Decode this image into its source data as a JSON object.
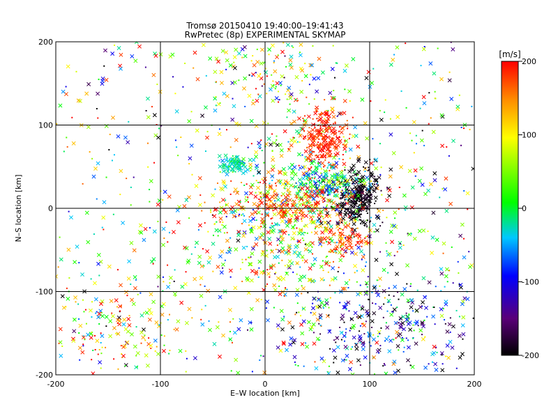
{
  "chart_data": {
    "type": "scatter",
    "title": "Tromsø 20150410 19:40:00–19:41:43",
    "subtitle": "RwPretec (8p) EXPERIMENTAL SKYMAP",
    "xlabel": "E–W location [km]",
    "ylabel": "N–S location [km]",
    "xlim": [
      -200,
      200
    ],
    "ylim": [
      -200,
      200
    ],
    "xticks": [
      -200,
      -100,
      0,
      100,
      200
    ],
    "yticks": [
      -200,
      -100,
      0,
      100,
      200
    ],
    "grid": true,
    "colorbar": {
      "label": "[m/s]",
      "min": -200,
      "max": 200,
      "ticks": [
        200,
        100,
        0,
        -100,
        -200
      ]
    },
    "markers": [
      "cross",
      "dot"
    ],
    "seed": 20150410,
    "clusters": [
      {
        "cx": 0,
        "cy": 0,
        "sx": 150,
        "sy": 150,
        "n": 650,
        "vmean": 20,
        "vsd": 120
      },
      {
        "cx": 20,
        "cy": -20,
        "sx": 45,
        "sy": 55,
        "n": 700,
        "vmean": 60,
        "vsd": 90
      },
      {
        "cx": 55,
        "cy": 85,
        "sx": 13,
        "sy": 17,
        "n": 230,
        "vmean": 190,
        "vsd": 18
      },
      {
        "cx": 88,
        "cy": 12,
        "sx": 11,
        "sy": 17,
        "n": 300,
        "vmean": -195,
        "vsd": 12
      },
      {
        "cx": 55,
        "cy": 30,
        "sx": 20,
        "sy": 12,
        "n": 200,
        "vmean": -20,
        "vsd": 60
      },
      {
        "cx": -30,
        "cy": 53,
        "sx": 8,
        "sy": 5,
        "n": 90,
        "vmean": -30,
        "vsd": 18
      },
      {
        "cx": 0,
        "cy": 160,
        "sx": 30,
        "sy": 25,
        "n": 110,
        "vmean": 80,
        "vsd": 110
      },
      {
        "cx": 115,
        "cy": -140,
        "sx": 45,
        "sy": 35,
        "n": 320,
        "vmean": -110,
        "vsd": 90
      },
      {
        "cx": -145,
        "cy": -145,
        "sx": 35,
        "sy": 30,
        "n": 140,
        "vmean": 120,
        "vsd": 90
      },
      {
        "cx": 75,
        "cy": -40,
        "sx": 12,
        "sy": 10,
        "n": 70,
        "vmean": 180,
        "vsd": 25
      },
      {
        "cx": 20,
        "cy": 5,
        "sx": 35,
        "sy": 12,
        "n": 180,
        "vmean": 180,
        "vsd": 30
      }
    ]
  }
}
